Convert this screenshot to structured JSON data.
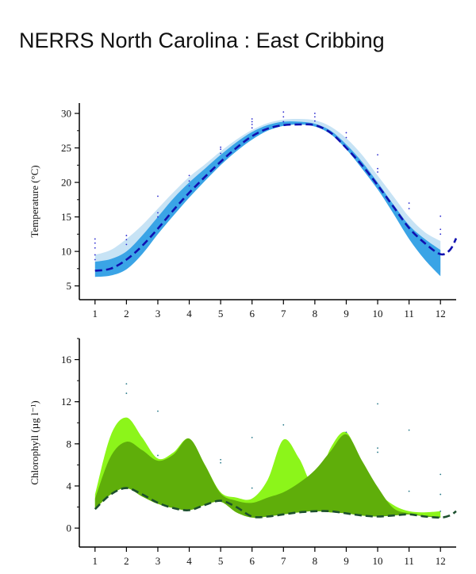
{
  "title": "NERRS North Carolina : East Cribbing",
  "chart_data": [
    {
      "type": "area",
      "ylabel": "Temperature (°C)",
      "xlim": [
        0.5,
        12.5
      ],
      "ylim": [
        3.0,
        31.5
      ],
      "x_ticks": [
        "1",
        "2",
        "3",
        "4",
        "5",
        "6",
        "7",
        "8",
        "9",
        "10",
        "11",
        "12"
      ],
      "y_ticks": [
        "5",
        "10",
        "15",
        "20",
        "25",
        "30"
      ],
      "colors": {
        "outer_band": "#c7e3f5",
        "inner_band": "#3aa4e6",
        "mean_line": "#1010b0",
        "points": "#2b2bd0"
      },
      "bands": [
        {
          "color_key": "outer_band",
          "x": [
            1,
            1.5,
            2,
            2.5,
            3,
            3.5,
            4,
            4.5,
            5,
            5.5,
            6,
            6.5,
            7,
            7.5,
            8,
            8.5,
            9,
            9.5,
            10,
            10.5,
            11,
            11.5,
            12
          ],
          "low": [
            7.6,
            7.8,
            8.5,
            10.5,
            13.0,
            15.6,
            18.2,
            20.5,
            22.7,
            24.7,
            26.5,
            27.7,
            28.3,
            28.5,
            28.2,
            27.2,
            25.0,
            22.3,
            19.3,
            16.0,
            12.8,
            9.8,
            7.0
          ],
          "high": [
            9.5,
            10.2,
            11.8,
            13.8,
            16.2,
            18.6,
            20.8,
            22.6,
            24.5,
            26.2,
            27.6,
            28.6,
            29.1,
            29.2,
            29.0,
            28.1,
            26.4,
            24.0,
            21.0,
            18.0,
            15.0,
            12.8,
            11.5
          ]
        },
        {
          "color_key": "inner_band",
          "x": [
            1,
            1.5,
            2,
            2.5,
            3,
            3.5,
            4,
            4.5,
            5,
            5.5,
            6,
            6.5,
            7,
            7.5,
            8,
            8.5,
            9,
            9.5,
            10,
            10.5,
            11,
            11.5,
            12
          ],
          "low": [
            6.3,
            6.5,
            7.4,
            9.6,
            12.5,
            15.2,
            17.8,
            20.2,
            22.5,
            24.5,
            26.2,
            27.5,
            28.2,
            28.4,
            28.1,
            27.0,
            24.8,
            22.0,
            19.0,
            15.5,
            11.8,
            8.8,
            6.4
          ],
          "high": [
            8.5,
            8.9,
            10.0,
            12.3,
            15.0,
            17.7,
            20.0,
            22.0,
            24.0,
            25.8,
            27.3,
            28.3,
            28.8,
            28.8,
            28.5,
            27.5,
            25.5,
            23.0,
            20.0,
            16.8,
            13.8,
            11.8,
            10.2
          ]
        }
      ],
      "mean_line": {
        "x": [
          1,
          1.5,
          2,
          2.5,
          3,
          3.5,
          4,
          4.5,
          5,
          5.5,
          6,
          6.5,
          7,
          7.5,
          8,
          8.5,
          9,
          9.5,
          10,
          10.5,
          11,
          11.5,
          12,
          12.3,
          12.5
        ],
        "y": [
          7.2,
          7.5,
          8.8,
          10.8,
          13.3,
          16.0,
          18.5,
          20.8,
          23.0,
          25.0,
          26.7,
          27.8,
          28.3,
          28.4,
          28.3,
          27.2,
          25.0,
          22.5,
          19.6,
          16.5,
          13.4,
          11.2,
          9.6,
          10.2,
          11.9
        ]
      },
      "points": [
        [
          1,
          9.5
        ],
        [
          1,
          10.5
        ],
        [
          1,
          11.2
        ],
        [
          1,
          11.8
        ],
        [
          1,
          8.8
        ],
        [
          2,
          11.0
        ],
        [
          2,
          11.7
        ],
        [
          2,
          12.3
        ],
        [
          3,
          15.0
        ],
        [
          3,
          15.6
        ],
        [
          3,
          18.0
        ],
        [
          4,
          19.5
        ],
        [
          4,
          20.2
        ],
        [
          4,
          21.0
        ],
        [
          5,
          24.2
        ],
        [
          5,
          24.8
        ],
        [
          5,
          25.1
        ],
        [
          6,
          27.9
        ],
        [
          6,
          28.4
        ],
        [
          6,
          28.8
        ],
        [
          6,
          29.2
        ],
        [
          7,
          28.8
        ],
        [
          7,
          29.5
        ],
        [
          7,
          30.2
        ],
        [
          8,
          28.9
        ],
        [
          8,
          29.5
        ],
        [
          8,
          30.0
        ],
        [
          9,
          26.5
        ],
        [
          9,
          27.2
        ],
        [
          10,
          21.5
        ],
        [
          10,
          22.0
        ],
        [
          10,
          24.0
        ],
        [
          11,
          16.2
        ],
        [
          11,
          17.0
        ],
        [
          12,
          12.5
        ],
        [
          12,
          13.2
        ],
        [
          12,
          15.1
        ]
      ]
    },
    {
      "type": "area",
      "ylabel": "Chlorophyll (µg l⁻¹)",
      "xlim": [
        0.5,
        12.5
      ],
      "ylim": [
        -1.8,
        18.0
      ],
      "x_ticks": [
        "1",
        "2",
        "3",
        "4",
        "5",
        "6",
        "7",
        "8",
        "9",
        "10",
        "11",
        "12"
      ],
      "y_ticks": [
        "0",
        "4",
        "8",
        "12",
        "16"
      ],
      "colors": {
        "light_band": "#8cf51a",
        "dark_band": "#5fae0a",
        "mean_line": "#1c4f2e",
        "points": "#2a7a8a"
      },
      "bands": [
        {
          "color_key": "light_band",
          "x": [
            1,
            1.5,
            2,
            2.5,
            3,
            3.5,
            4,
            4.5,
            5,
            5.5,
            6,
            6.5,
            7,
            7.5,
            8,
            8.5,
            9,
            9.5,
            10,
            10.5,
            11,
            11.5,
            12
          ],
          "low": [
            1.8,
            3.2,
            3.8,
            3.0,
            2.3,
            1.9,
            1.7,
            2.2,
            2.5,
            1.5,
            1.0,
            1.1,
            1.3,
            1.5,
            1.6,
            1.5,
            1.4,
            1.2,
            1.1,
            1.2,
            1.3,
            1.1,
            1.0
          ],
          "high": [
            3.2,
            8.8,
            10.5,
            8.6,
            6.6,
            7.2,
            8.5,
            6.0,
            3.4,
            2.9,
            2.8,
            4.6,
            8.4,
            6.6,
            4.0,
            7.6,
            9.1,
            6.0,
            3.5,
            2.2,
            1.6,
            1.5,
            1.6
          ]
        },
        {
          "color_key": "dark_band",
          "x": [
            1,
            1.5,
            2,
            2.5,
            3,
            3.5,
            4,
            4.5,
            5,
            5.5,
            6,
            6.5,
            7,
            7.5,
            8,
            8.5,
            9,
            9.5,
            10,
            10.5,
            11,
            11.5,
            12
          ],
          "low": [
            1.8,
            3.2,
            3.8,
            3.0,
            2.3,
            1.9,
            1.7,
            2.2,
            2.5,
            1.5,
            1.0,
            1.1,
            1.3,
            1.5,
            1.6,
            1.5,
            1.4,
            1.2,
            1.1,
            1.2,
            1.3,
            1.1,
            1.0
          ],
          "high": [
            2.8,
            6.8,
            8.2,
            7.4,
            6.4,
            7.0,
            8.5,
            6.0,
            3.3,
            2.6,
            2.4,
            2.9,
            3.4,
            4.3,
            5.5,
            7.3,
            8.9,
            6.4,
            3.9,
            1.9,
            1.4,
            1.2,
            1.1
          ]
        }
      ],
      "mean_line": {
        "x": [
          1,
          1.5,
          2,
          2.5,
          3,
          3.5,
          4,
          4.5,
          5,
          5.5,
          6,
          6.5,
          7,
          7.5,
          8,
          8.5,
          9,
          9.5,
          10,
          10.5,
          11,
          11.5,
          12,
          12.3,
          12.5
        ],
        "y": [
          1.8,
          3.2,
          3.8,
          3.2,
          2.4,
          1.9,
          1.7,
          2.2,
          2.6,
          2.0,
          1.1,
          1.1,
          1.3,
          1.5,
          1.6,
          1.6,
          1.4,
          1.2,
          1.1,
          1.2,
          1.3,
          1.1,
          1.0,
          1.2,
          1.6
        ]
      },
      "points": [
        [
          2,
          13.7
        ],
        [
          2,
          12.8
        ],
        [
          3,
          11.1
        ],
        [
          3,
          6.9
        ],
        [
          5,
          6.5
        ],
        [
          5,
          6.2
        ],
        [
          6,
          8.6
        ],
        [
          6,
          3.8
        ],
        [
          7,
          9.8
        ],
        [
          9,
          9.1
        ],
        [
          10,
          11.8
        ],
        [
          10,
          7.6
        ],
        [
          10,
          7.2
        ],
        [
          11,
          9.3
        ],
        [
          11,
          3.5
        ],
        [
          12,
          5.1
        ],
        [
          12,
          3.2
        ],
        [
          12,
          1.6
        ]
      ]
    }
  ]
}
